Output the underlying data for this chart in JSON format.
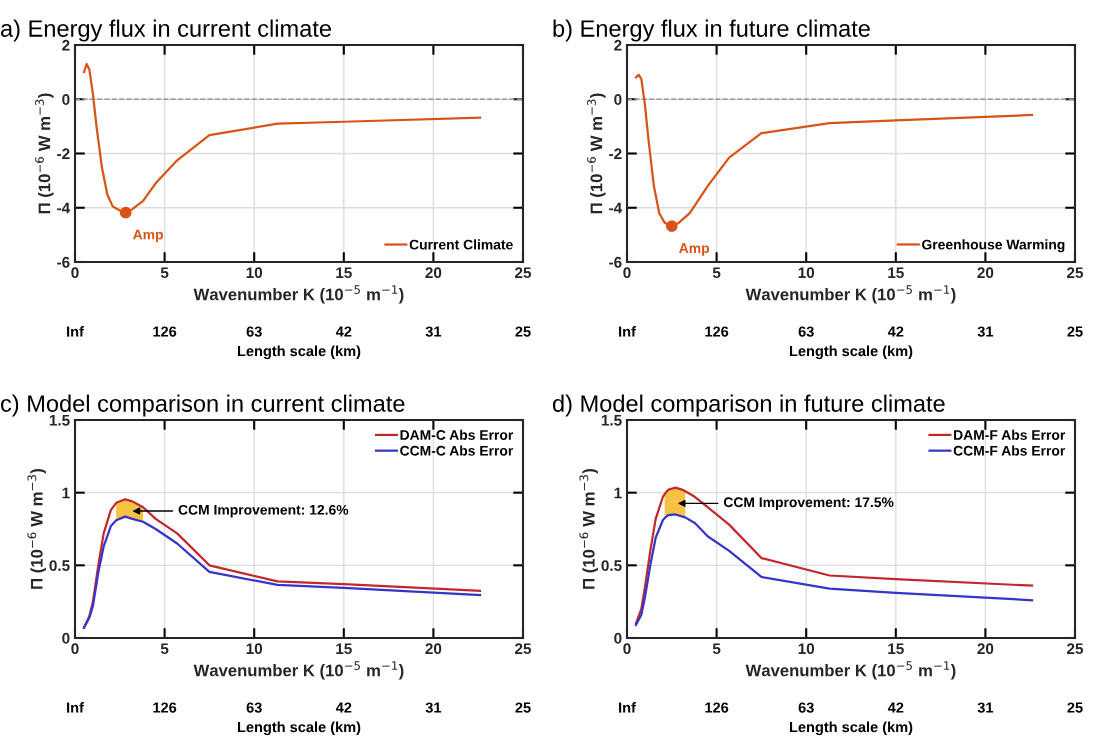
{
  "chart_data": [
    {
      "type": "line",
      "title": "a) Energy flux in current climate",
      "xlabel": "Wavenumber K (10$^{−5}$ m$^{−1}$)",
      "ylabel": "Π (10$^{−6}$ W m$^{−3}$)",
      "xlim": [
        0,
        25
      ],
      "xticks": [
        0,
        5,
        10,
        15,
        20,
        25
      ],
      "ylim": [
        -6,
        2
      ],
      "yticks": [
        -6,
        -4,
        -2,
        0,
        2
      ],
      "grid": true,
      "legend": "bottom right",
      "ref_lines": [
        {
          "axis": "y",
          "value": 0,
          "color": "#999999",
          "line_style": "dashed"
        }
      ],
      "annotations": [
        {
          "text": "Amp",
          "x": 2.83,
          "y": -4.18
        },
        "Inf",
        "126",
        "63",
        "42",
        "31",
        "25",
        "Length scale (km)"
      ],
      "series": [
        {
          "name": "Current Climate",
          "color": "#d95319",
          "x": [
            0.5,
            0.65,
            0.8,
            1.0,
            1.2,
            1.5,
            1.8,
            2.1,
            2.5,
            2.83,
            3.2,
            3.8,
            4.5,
            5.7,
            7.5,
            11.3,
            15,
            22.6
          ],
          "values": [
            1.0,
            1.3,
            1.1,
            0.2,
            -1.0,
            -2.5,
            -3.5,
            -3.95,
            -4.1,
            -4.18,
            -4.05,
            -3.75,
            -3.1,
            -2.25,
            -1.32,
            -0.9,
            -0.83,
            -0.68
          ]
        },
        {
          "type": "scatter",
          "color": "#d95319",
          "x": [
            2.83
          ],
          "values": [
            -4.18
          ]
        }
      ]
    },
    {
      "type": "line",
      "title": "b) Energy flux in future climate",
      "xlabel": "Wavenumber K (10$^{−5}$ m$^{−1}$)",
      "ylabel": "Π (10$^{−6}$ W m$^{−3}$)",
      "xlim": [
        0,
        25
      ],
      "xticks": [
        0,
        5,
        10,
        15,
        20,
        25
      ],
      "ylim": [
        -6,
        2
      ],
      "yticks": [
        -6,
        -4,
        -2,
        0,
        2
      ],
      "grid": true,
      "legend": "bottom right",
      "ref_lines": [
        {
          "axis": "y",
          "value": 0,
          "color": "#999999",
          "line_style": "dashed"
        }
      ],
      "annotations": [
        {
          "text": "Amp",
          "x": 2.5,
          "y": -4.68
        },
        "Inf",
        "126",
        "63",
        "42",
        "31",
        "25",
        "Length scale (km)"
      ],
      "series": [
        {
          "name": "Greenhouse Warming",
          "color": "#d95319",
          "x": [
            0.5,
            0.65,
            0.8,
            1.0,
            1.2,
            1.5,
            1.8,
            2.1,
            2.5,
            2.9,
            3.5,
            4.5,
            5.7,
            7.5,
            11.3,
            15,
            22.6
          ],
          "values": [
            0.8,
            0.9,
            0.75,
            -0.2,
            -1.5,
            -3.2,
            -4.2,
            -4.55,
            -4.68,
            -4.55,
            -4.2,
            -3.2,
            -2.15,
            -1.25,
            -0.88,
            -0.78,
            -0.58
          ]
        },
        {
          "type": "scatter",
          "color": "#d95319",
          "x": [
            2.5
          ],
          "values": [
            -4.68
          ]
        }
      ]
    },
    {
      "type": "line",
      "title": "c) Model comparison in current climate",
      "xlabel": "Wavenumber K (10$^{−5}$ m$^{−1}$)",
      "ylabel": "Π (10$^{−6}$ W m$^{−3}$)",
      "xlim": [
        0,
        25
      ],
      "xticks": [
        0,
        5,
        10,
        15,
        20,
        25
      ],
      "ylim": [
        0,
        1.5
      ],
      "yticks": [
        0,
        0.5,
        1,
        1.5
      ],
      "grid": true,
      "legend": "top right",
      "annotations": [
        "CCM Improvement: 12.6%",
        "Inf",
        "126",
        "63",
        "42",
        "31",
        "25",
        "Length scale (km)"
      ],
      "series": [
        {
          "type": "area",
          "color": "#f7c241",
          "x": [
            2.3,
            2.8,
            3.2,
            3.8
          ],
          "values": [
            0.93,
            0.955,
            0.94,
            0.9
          ]
        },
        {
          "name": "DAM-C Abs Error",
          "color": "#c0282d",
          "x": [
            0.5,
            0.8,
            1.0,
            1.3,
            1.6,
            2.0,
            2.3,
            2.8,
            3.2,
            3.8,
            4.5,
            5.7,
            7.5,
            11.3,
            15,
            22.6
          ],
          "values": [
            0.07,
            0.15,
            0.25,
            0.5,
            0.72,
            0.88,
            0.93,
            0.955,
            0.94,
            0.9,
            0.82,
            0.72,
            0.5,
            0.39,
            0.37,
            0.325
          ]
        },
        {
          "name": "CCM-C Abs Error",
          "color": "#3535cc",
          "x": [
            0.5,
            0.8,
            1.0,
            1.3,
            1.6,
            2.0,
            2.3,
            2.8,
            3.2,
            3.8,
            4.5,
            5.7,
            7.5,
            11.3,
            15,
            22.6
          ],
          "values": [
            0.07,
            0.14,
            0.22,
            0.45,
            0.63,
            0.77,
            0.81,
            0.835,
            0.82,
            0.8,
            0.75,
            0.65,
            0.455,
            0.365,
            0.345,
            0.295
          ]
        }
      ]
    },
    {
      "type": "line",
      "title": "d) Model comparison in future climate",
      "xlabel": "Wavenumber K (10$^{−5}$ m$^{−1}$)",
      "ylabel": "Π (10$^{−6}$ W m$^{−3}$)",
      "xlim": [
        0,
        25
      ],
      "xticks": [
        0,
        5,
        10,
        15,
        20,
        25
      ],
      "ylim": [
        0,
        1.5
      ],
      "yticks": [
        0,
        0.5,
        1,
        1.5
      ],
      "grid": true,
      "legend": "top right",
      "annotations": [
        "CCM Improvement: 17.5%",
        "Inf",
        "126",
        "63",
        "42",
        "31",
        "25",
        "Length scale (km)"
      ],
      "series": [
        {
          "type": "area",
          "color": "#f7c241",
          "x": [
            2.1,
            2.3,
            2.7,
            3.1,
            3.25
          ],
          "values": [
            0.99,
            1.02,
            1.035,
            1.02,
            1.01
          ]
        },
        {
          "name": "DAM-F Abs Error",
          "color": "#c0282d",
          "x": [
            0.5,
            0.8,
            1.0,
            1.3,
            1.6,
            2.0,
            2.1,
            2.3,
            2.7,
            3.1,
            3.25,
            3.8,
            4.5,
            5.7,
            7.5,
            11.3,
            15,
            22.6
          ],
          "values": [
            0.1,
            0.2,
            0.35,
            0.6,
            0.82,
            0.97,
            0.99,
            1.02,
            1.035,
            1.02,
            1.01,
            0.97,
            0.9,
            0.78,
            0.55,
            0.43,
            0.405,
            0.36
          ]
        },
        {
          "name": "CCM-F Abs Error",
          "color": "#3535cc",
          "x": [
            0.5,
            0.8,
            1.0,
            1.3,
            1.6,
            2.0,
            2.1,
            2.3,
            2.7,
            3.1,
            3.25,
            3.8,
            4.5,
            5.7,
            7.5,
            11.3,
            15,
            22.6
          ],
          "values": [
            0.09,
            0.16,
            0.28,
            0.5,
            0.69,
            0.81,
            0.825,
            0.845,
            0.85,
            0.835,
            0.83,
            0.79,
            0.7,
            0.6,
            0.42,
            0.34,
            0.31,
            0.26
          ]
        }
      ]
    }
  ]
}
